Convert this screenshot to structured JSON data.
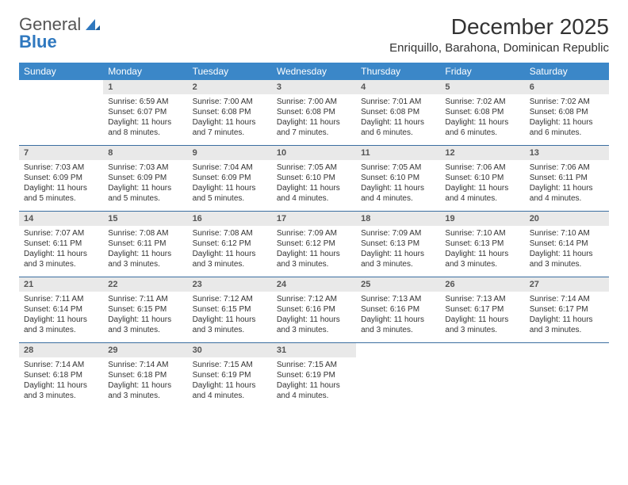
{
  "logo": {
    "text1": "General",
    "text2": "Blue"
  },
  "title": "December 2025",
  "location": "Enriquillo, Barahona, Dominican Republic",
  "colors": {
    "header_bg": "#3b87c8",
    "header_text": "#ffffff",
    "row_divider": "#3b6ea0",
    "daynum_bg": "#e9e9e9",
    "text": "#333333",
    "logo_blue": "#2f78bf"
  },
  "day_names": [
    "Sunday",
    "Monday",
    "Tuesday",
    "Wednesday",
    "Thursday",
    "Friday",
    "Saturday"
  ],
  "weeks": [
    [
      {
        "n": "",
        "lines": []
      },
      {
        "n": "1",
        "lines": [
          "Sunrise: 6:59 AM",
          "Sunset: 6:07 PM",
          "Daylight: 11 hours and 8 minutes."
        ]
      },
      {
        "n": "2",
        "lines": [
          "Sunrise: 7:00 AM",
          "Sunset: 6:08 PM",
          "Daylight: 11 hours and 7 minutes."
        ]
      },
      {
        "n": "3",
        "lines": [
          "Sunrise: 7:00 AM",
          "Sunset: 6:08 PM",
          "Daylight: 11 hours and 7 minutes."
        ]
      },
      {
        "n": "4",
        "lines": [
          "Sunrise: 7:01 AM",
          "Sunset: 6:08 PM",
          "Daylight: 11 hours and 6 minutes."
        ]
      },
      {
        "n": "5",
        "lines": [
          "Sunrise: 7:02 AM",
          "Sunset: 6:08 PM",
          "Daylight: 11 hours and 6 minutes."
        ]
      },
      {
        "n": "6",
        "lines": [
          "Sunrise: 7:02 AM",
          "Sunset: 6:08 PM",
          "Daylight: 11 hours and 6 minutes."
        ]
      }
    ],
    [
      {
        "n": "7",
        "lines": [
          "Sunrise: 7:03 AM",
          "Sunset: 6:09 PM",
          "Daylight: 11 hours and 5 minutes."
        ]
      },
      {
        "n": "8",
        "lines": [
          "Sunrise: 7:03 AM",
          "Sunset: 6:09 PM",
          "Daylight: 11 hours and 5 minutes."
        ]
      },
      {
        "n": "9",
        "lines": [
          "Sunrise: 7:04 AM",
          "Sunset: 6:09 PM",
          "Daylight: 11 hours and 5 minutes."
        ]
      },
      {
        "n": "10",
        "lines": [
          "Sunrise: 7:05 AM",
          "Sunset: 6:10 PM",
          "Daylight: 11 hours and 4 minutes."
        ]
      },
      {
        "n": "11",
        "lines": [
          "Sunrise: 7:05 AM",
          "Sunset: 6:10 PM",
          "Daylight: 11 hours and 4 minutes."
        ]
      },
      {
        "n": "12",
        "lines": [
          "Sunrise: 7:06 AM",
          "Sunset: 6:10 PM",
          "Daylight: 11 hours and 4 minutes."
        ]
      },
      {
        "n": "13",
        "lines": [
          "Sunrise: 7:06 AM",
          "Sunset: 6:11 PM",
          "Daylight: 11 hours and 4 minutes."
        ]
      }
    ],
    [
      {
        "n": "14",
        "lines": [
          "Sunrise: 7:07 AM",
          "Sunset: 6:11 PM",
          "Daylight: 11 hours and 3 minutes."
        ]
      },
      {
        "n": "15",
        "lines": [
          "Sunrise: 7:08 AM",
          "Sunset: 6:11 PM",
          "Daylight: 11 hours and 3 minutes."
        ]
      },
      {
        "n": "16",
        "lines": [
          "Sunrise: 7:08 AM",
          "Sunset: 6:12 PM",
          "Daylight: 11 hours and 3 minutes."
        ]
      },
      {
        "n": "17",
        "lines": [
          "Sunrise: 7:09 AM",
          "Sunset: 6:12 PM",
          "Daylight: 11 hours and 3 minutes."
        ]
      },
      {
        "n": "18",
        "lines": [
          "Sunrise: 7:09 AM",
          "Sunset: 6:13 PM",
          "Daylight: 11 hours and 3 minutes."
        ]
      },
      {
        "n": "19",
        "lines": [
          "Sunrise: 7:10 AM",
          "Sunset: 6:13 PM",
          "Daylight: 11 hours and 3 minutes."
        ]
      },
      {
        "n": "20",
        "lines": [
          "Sunrise: 7:10 AM",
          "Sunset: 6:14 PM",
          "Daylight: 11 hours and 3 minutes."
        ]
      }
    ],
    [
      {
        "n": "21",
        "lines": [
          "Sunrise: 7:11 AM",
          "Sunset: 6:14 PM",
          "Daylight: 11 hours and 3 minutes."
        ]
      },
      {
        "n": "22",
        "lines": [
          "Sunrise: 7:11 AM",
          "Sunset: 6:15 PM",
          "Daylight: 11 hours and 3 minutes."
        ]
      },
      {
        "n": "23",
        "lines": [
          "Sunrise: 7:12 AM",
          "Sunset: 6:15 PM",
          "Daylight: 11 hours and 3 minutes."
        ]
      },
      {
        "n": "24",
        "lines": [
          "Sunrise: 7:12 AM",
          "Sunset: 6:16 PM",
          "Daylight: 11 hours and 3 minutes."
        ]
      },
      {
        "n": "25",
        "lines": [
          "Sunrise: 7:13 AM",
          "Sunset: 6:16 PM",
          "Daylight: 11 hours and 3 minutes."
        ]
      },
      {
        "n": "26",
        "lines": [
          "Sunrise: 7:13 AM",
          "Sunset: 6:17 PM",
          "Daylight: 11 hours and 3 minutes."
        ]
      },
      {
        "n": "27",
        "lines": [
          "Sunrise: 7:14 AM",
          "Sunset: 6:17 PM",
          "Daylight: 11 hours and 3 minutes."
        ]
      }
    ],
    [
      {
        "n": "28",
        "lines": [
          "Sunrise: 7:14 AM",
          "Sunset: 6:18 PM",
          "Daylight: 11 hours and 3 minutes."
        ]
      },
      {
        "n": "29",
        "lines": [
          "Sunrise: 7:14 AM",
          "Sunset: 6:18 PM",
          "Daylight: 11 hours and 3 minutes."
        ]
      },
      {
        "n": "30",
        "lines": [
          "Sunrise: 7:15 AM",
          "Sunset: 6:19 PM",
          "Daylight: 11 hours and 4 minutes."
        ]
      },
      {
        "n": "31",
        "lines": [
          "Sunrise: 7:15 AM",
          "Sunset: 6:19 PM",
          "Daylight: 11 hours and 4 minutes."
        ]
      },
      {
        "n": "",
        "lines": []
      },
      {
        "n": "",
        "lines": []
      },
      {
        "n": "",
        "lines": []
      }
    ]
  ]
}
